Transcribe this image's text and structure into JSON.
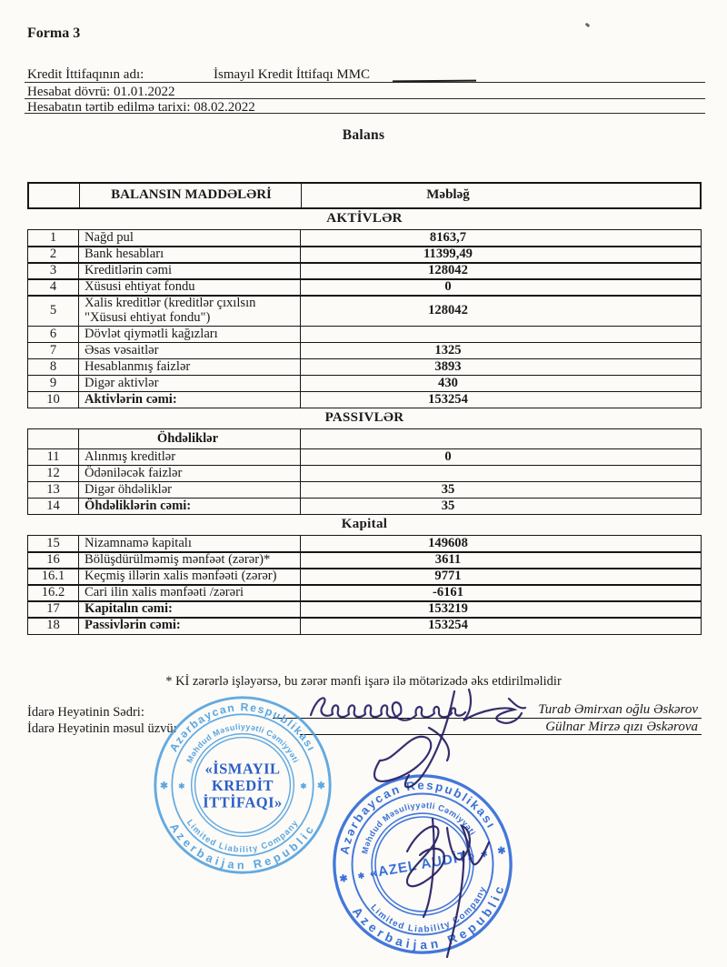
{
  "page": {
    "form_no": "Forma 3",
    "title": "Balans"
  },
  "header": {
    "name_label": "Kredit İttifaqının adı:",
    "name_value": "İsmayıl Kredit İttifaqı MMC",
    "period_line": "Hesabat dövrü: 01.01.2022",
    "prepared_line": "Hesabatın tərtib edilmə tarixi: 08.02.2022"
  },
  "table": {
    "header": {
      "items_col": "BALANSIN MADDƏLƏRİ",
      "amount_col": "Məbləğ"
    },
    "rows": [
      {
        "type": "section",
        "label": "AKTİVLƏR"
      },
      {
        "type": "item",
        "no": "1",
        "label": "Nağd pul",
        "value": "8163,7"
      },
      {
        "type": "item",
        "no": "2",
        "label": "Bank hesabları",
        "value": "11399,49"
      },
      {
        "type": "item",
        "no": "3",
        "label": "Kreditlərin cəmi",
        "value": "128042"
      },
      {
        "type": "item",
        "no": "4",
        "label": "Xüsusi ehtiyat fondu",
        "value": "0"
      },
      {
        "type": "item",
        "no": "5",
        "label": "Xalis kreditlər (kreditlər çıxılsın \"Xüsusi ehtiyat fondu\")",
        "value": "128042"
      },
      {
        "type": "item",
        "no": "6",
        "label": "Dövlət qiymətli kağızları",
        "value": ""
      },
      {
        "type": "item",
        "no": "7",
        "label": "Əsas vəsaitlər",
        "value": "1325"
      },
      {
        "type": "item",
        "no": "8",
        "label": "Hesablanmış faizlər",
        "value": "3893"
      },
      {
        "type": "item",
        "no": "9",
        "label": "Digər aktivlər",
        "value": "430"
      },
      {
        "type": "item",
        "no": "10",
        "label": "Aktivlərin cəmi:",
        "value": "153254",
        "bold": true
      },
      {
        "type": "section",
        "label": "PASSIVLƏR"
      },
      {
        "type": "subheader",
        "label": "Öhdəliklər"
      },
      {
        "type": "item",
        "no": "11",
        "label": "Alınmış kreditlər",
        "value": "0"
      },
      {
        "type": "item",
        "no": "12",
        "label": "Ödəniləcək faizlər",
        "value": ""
      },
      {
        "type": "item",
        "no": "13",
        "label": "Digər öhdəliklər",
        "value": "35"
      },
      {
        "type": "item",
        "no": "14",
        "label": "Öhdəliklərin cəmi:",
        "value": "35",
        "bold": true
      },
      {
        "type": "section",
        "label": "Kapital"
      },
      {
        "type": "item",
        "no": "15",
        "label": "Nizamnamə kapitalı",
        "value": "149608"
      },
      {
        "type": "item",
        "no": "16",
        "label": "Bölüşdürülməmiş mənfəət (zərər)*",
        "value": "3611"
      },
      {
        "type": "item",
        "no": "16.1",
        "label": "Keçmiş illərin xalis mənfəəti (zərər)",
        "value": "9771"
      },
      {
        "type": "item",
        "no": "16.2",
        "label": "Cari ilin xalis mənfəəti /zərəri",
        "value": "-6161"
      },
      {
        "type": "item",
        "no": "17",
        "label": "Kapitalın cəmi:",
        "value": "153219",
        "bold": true
      },
      {
        "type": "item",
        "no": "18",
        "label": "Passivlərin cəmi:",
        "value": "153254",
        "bold": true
      }
    ]
  },
  "footnote": "* Kİ  zərərlə işləyərsə, bu zərər mənfi işarə ilə mötərizədə əks  etdirilməlidir",
  "signatures": {
    "chairman_label": "İdarə Heyətinin Sədri:",
    "member_label": "İdarə Heyətinin məsul üzvü:",
    "chairman_name": "Turab Əmirxan oğlu Əskərov",
    "member_name": "Gülnar  Mirzə qızı Əskərova"
  },
  "stamps": [
    {
      "outer_top": "Azərbaycan Respublikası",
      "outer_bottom": "Azerbaijan Republic",
      "inner_top": "Məhdud Məsuliyyətli Cəmiyyəti",
      "inner_bottom": "Limited Liability Company",
      "center_lines": [
        "«İSMAYIL",
        "KREDİT",
        "İTTİFAQI»"
      ],
      "star": "✱",
      "ring_color": "#4d9edd",
      "center_color": "#2b5fc7"
    },
    {
      "outer_top": "Azərbaycan Respublikası",
      "outer_bottom": "Azerbaijan Republic",
      "inner_top": "Məhdud Məsuliyyətli Cəmiyyəti",
      "inner_bottom": "Limited Liability Company",
      "center_lines": [
        "«AZEL AUDİT»"
      ],
      "star": "✱",
      "ring_color": "#2f68d6",
      "center_color": "#2f68d6"
    }
  ],
  "ink_color": "#2b2366"
}
